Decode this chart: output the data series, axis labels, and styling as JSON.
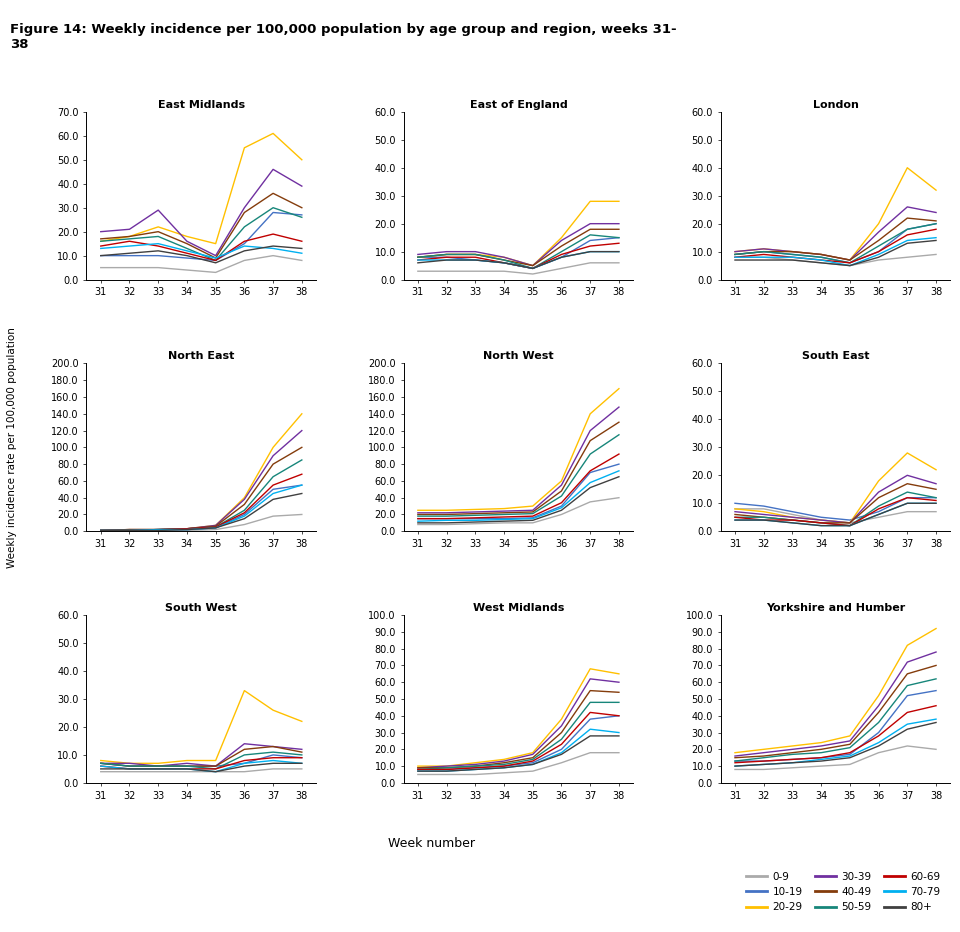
{
  "title": "Figure 14: Weekly incidence per 100,000 population by age group and region, weeks 31-\n38",
  "ylabel": "Weekly incidence rate per 100,000 population",
  "xlabel": "Week number",
  "weeks": [
    31,
    32,
    33,
    34,
    35,
    36,
    37,
    38
  ],
  "age_groups": [
    "0-9",
    "10-19",
    "20-29",
    "30-39",
    "40-49",
    "50-59",
    "60-69",
    "70-79",
    "80+"
  ],
  "colors": {
    "0-9": "#aaaaaa",
    "10-19": "#4472c4",
    "20-29": "#ffc000",
    "30-39": "#7030a0",
    "40-49": "#843c0c",
    "50-59": "#17867a",
    "60-69": "#c00000",
    "70-79": "#00b0f0",
    "80+": "#404040"
  },
  "regions": [
    "East Midlands",
    "East of England",
    "London",
    "North East",
    "North West",
    "South East",
    "South West",
    "West Midlands",
    "Yorkshire and Humber"
  ],
  "ylims": {
    "East Midlands": [
      0,
      70
    ],
    "East of England": [
      0,
      60
    ],
    "London": [
      0,
      60
    ],
    "North East": [
      0,
      200
    ],
    "North West": [
      0,
      200
    ],
    "South East": [
      0,
      60
    ],
    "South West": [
      0,
      60
    ],
    "West Midlands": [
      0,
      100
    ],
    "Yorkshire and Humber": [
      0,
      100
    ]
  },
  "yticks": {
    "East Midlands": [
      0,
      10,
      20,
      30,
      40,
      50,
      60,
      70
    ],
    "East of England": [
      0,
      10,
      20,
      30,
      40,
      50,
      60
    ],
    "London": [
      0,
      10,
      20,
      30,
      40,
      50,
      60
    ],
    "North East": [
      0,
      20,
      40,
      60,
      80,
      100,
      120,
      140,
      160,
      180,
      200
    ],
    "North West": [
      0,
      20,
      40,
      60,
      80,
      100,
      120,
      140,
      160,
      180,
      200
    ],
    "South East": [
      0,
      10,
      20,
      30,
      40,
      50,
      60
    ],
    "South West": [
      0,
      10,
      20,
      30,
      40,
      50,
      60
    ],
    "West Midlands": [
      0,
      10,
      20,
      30,
      40,
      50,
      60,
      70,
      80,
      90,
      100
    ],
    "Yorkshire and Humber": [
      0,
      10,
      20,
      30,
      40,
      50,
      60,
      70,
      80,
      90,
      100
    ]
  },
  "data": {
    "East Midlands": {
      "0-9": [
        5,
        5,
        5,
        4,
        3,
        8,
        10,
        8
      ],
      "10-19": [
        10,
        10,
        10,
        9,
        8,
        15,
        28,
        27
      ],
      "20-29": [
        16,
        18,
        22,
        18,
        15,
        55,
        61,
        50
      ],
      "30-39": [
        20,
        21,
        29,
        16,
        10,
        30,
        46,
        39
      ],
      "40-49": [
        17,
        18,
        20,
        15,
        9,
        28,
        36,
        30
      ],
      "50-59": [
        16,
        17,
        18,
        13,
        8,
        22,
        30,
        26
      ],
      "60-69": [
        14,
        16,
        14,
        11,
        8,
        16,
        19,
        16
      ],
      "70-79": [
        13,
        14,
        15,
        12,
        9,
        14,
        13,
        11
      ],
      "80+": [
        10,
        11,
        12,
        10,
        7,
        12,
        14,
        13
      ]
    },
    "East of England": {
      "0-9": [
        3,
        3,
        3,
        3,
        2,
        4,
        6,
        6
      ],
      "10-19": [
        8,
        8,
        7,
        6,
        4,
        8,
        14,
        15
      ],
      "20-29": [
        8,
        9,
        9,
        8,
        5,
        15,
        28,
        28
      ],
      "30-39": [
        9,
        10,
        10,
        8,
        5,
        14,
        20,
        20
      ],
      "40-49": [
        8,
        9,
        9,
        7,
        5,
        12,
        18,
        18
      ],
      "50-59": [
        8,
        9,
        9,
        7,
        4,
        10,
        16,
        15
      ],
      "60-69": [
        7,
        8,
        8,
        6,
        4,
        9,
        12,
        13
      ],
      "70-79": [
        7,
        7,
        7,
        6,
        4,
        8,
        10,
        10
      ],
      "80+": [
        6,
        7,
        7,
        6,
        4,
        8,
        10,
        10
      ]
    },
    "London": {
      "0-9": [
        8,
        8,
        7,
        6,
        5,
        7,
        8,
        9
      ],
      "10-19": [
        9,
        10,
        9,
        8,
        6,
        10,
        18,
        20
      ],
      "20-29": [
        10,
        11,
        10,
        9,
        7,
        20,
        40,
        32
      ],
      "30-39": [
        10,
        11,
        10,
        9,
        7,
        17,
        26,
        24
      ],
      "40-49": [
        9,
        10,
        10,
        9,
        7,
        14,
        22,
        21
      ],
      "50-59": [
        9,
        10,
        9,
        8,
        6,
        12,
        18,
        20
      ],
      "60-69": [
        8,
        9,
        8,
        7,
        6,
        10,
        16,
        18
      ],
      "70-79": [
        8,
        8,
        8,
        7,
        5,
        9,
        14,
        15
      ],
      "80+": [
        7,
        7,
        7,
        6,
        5,
        8,
        13,
        14
      ]
    },
    "North East": {
      "0-9": [
        1,
        1,
        1,
        1,
        2,
        8,
        18,
        20
      ],
      "10-19": [
        1,
        1,
        2,
        2,
        4,
        20,
        50,
        55
      ],
      "20-29": [
        1,
        2,
        2,
        3,
        7,
        40,
        100,
        140
      ],
      "30-39": [
        1,
        2,
        2,
        3,
        7,
        38,
        90,
        120
      ],
      "40-49": [
        1,
        2,
        2,
        3,
        6,
        32,
        80,
        100
      ],
      "50-59": [
        1,
        1,
        2,
        3,
        5,
        25,
        65,
        85
      ],
      "60-69": [
        1,
        1,
        2,
        3,
        5,
        22,
        55,
        68
      ],
      "70-79": [
        1,
        1,
        2,
        2,
        4,
        18,
        45,
        55
      ],
      "80+": [
        1,
        1,
        1,
        2,
        4,
        15,
        38,
        45
      ]
    },
    "North West": {
      "0-9": [
        8,
        8,
        9,
        10,
        10,
        20,
        35,
        40
      ],
      "10-19": [
        15,
        15,
        15,
        15,
        16,
        30,
        70,
        80
      ],
      "20-29": [
        25,
        25,
        26,
        27,
        30,
        60,
        140,
        170
      ],
      "30-39": [
        22,
        22,
        23,
        24,
        25,
        55,
        120,
        148
      ],
      "40-49": [
        20,
        20,
        21,
        22,
        23,
        48,
        108,
        130
      ],
      "50-59": [
        18,
        18,
        19,
        20,
        21,
        42,
        92,
        115
      ],
      "60-69": [
        15,
        15,
        16,
        17,
        18,
        34,
        72,
        92
      ],
      "70-79": [
        12,
        13,
        13,
        14,
        15,
        28,
        58,
        72
      ],
      "80+": [
        10,
        10,
        11,
        12,
        13,
        25,
        52,
        65
      ]
    },
    "South East": {
      "0-9": [
        8,
        8,
        6,
        4,
        3,
        5,
        7,
        7
      ],
      "10-19": [
        10,
        9,
        7,
        5,
        4,
        7,
        12,
        12
      ],
      "20-29": [
        8,
        7,
        5,
        4,
        3,
        18,
        28,
        22
      ],
      "30-39": [
        7,
        6,
        5,
        4,
        3,
        14,
        20,
        17
      ],
      "40-49": [
        6,
        5,
        4,
        3,
        3,
        12,
        17,
        15
      ],
      "50-59": [
        5,
        5,
        4,
        3,
        2,
        9,
        14,
        12
      ],
      "60-69": [
        5,
        4,
        4,
        3,
        2,
        8,
        12,
        11
      ],
      "70-79": [
        4,
        4,
        3,
        2,
        2,
        6,
        10,
        10
      ],
      "80+": [
        4,
        4,
        3,
        2,
        2,
        6,
        10,
        10
      ]
    },
    "South West": {
      "0-9": [
        4,
        4,
        4,
        4,
        4,
        4,
        5,
        5
      ],
      "10-19": [
        7,
        6,
        6,
        6,
        6,
        7,
        10,
        9
      ],
      "20-29": [
        8,
        7,
        7,
        8,
        8,
        33,
        26,
        22
      ],
      "30-39": [
        7,
        7,
        6,
        7,
        6,
        14,
        13,
        12
      ],
      "40-49": [
        7,
        6,
        6,
        6,
        6,
        12,
        13,
        11
      ],
      "50-59": [
        7,
        6,
        6,
        6,
        5,
        10,
        11,
        10
      ],
      "60-69": [
        6,
        5,
        5,
        5,
        5,
        8,
        9,
        9
      ],
      "70-79": [
        6,
        5,
        5,
        5,
        4,
        7,
        8,
        7
      ],
      "80+": [
        5,
        5,
        5,
        5,
        4,
        6,
        7,
        7
      ]
    },
    "West Midlands": {
      "0-9": [
        5,
        5,
        5,
        6,
        7,
        12,
        18,
        18
      ],
      "10-19": [
        8,
        8,
        9,
        10,
        12,
        20,
        38,
        40
      ],
      "20-29": [
        10,
        10,
        12,
        14,
        18,
        38,
        68,
        65
      ],
      "30-39": [
        9,
        10,
        11,
        13,
        17,
        34,
        62,
        60
      ],
      "40-49": [
        9,
        9,
        10,
        12,
        15,
        30,
        55,
        54
      ],
      "50-59": [
        8,
        9,
        10,
        11,
        14,
        26,
        48,
        48
      ],
      "60-69": [
        8,
        8,
        9,
        10,
        13,
        23,
        42,
        40
      ],
      "70-79": [
        7,
        7,
        8,
        9,
        11,
        18,
        32,
        30
      ],
      "80+": [
        7,
        7,
        8,
        9,
        11,
        17,
        28,
        28
      ]
    },
    "Yorkshire and Humber": {
      "0-9": [
        8,
        8,
        9,
        10,
        11,
        18,
        22,
        20
      ],
      "10-19": [
        13,
        13,
        14,
        15,
        17,
        30,
        52,
        55
      ],
      "20-29": [
        18,
        20,
        22,
        24,
        28,
        52,
        82,
        92
      ],
      "30-39": [
        16,
        18,
        20,
        22,
        25,
        46,
        72,
        78
      ],
      "40-49": [
        15,
        16,
        18,
        20,
        23,
        42,
        65,
        70
      ],
      "50-59": [
        13,
        15,
        17,
        18,
        21,
        36,
        58,
        62
      ],
      "60-69": [
        12,
        13,
        14,
        15,
        18,
        28,
        42,
        46
      ],
      "70-79": [
        10,
        11,
        12,
        14,
        16,
        24,
        35,
        38
      ],
      "80+": [
        10,
        11,
        12,
        13,
        15,
        22,
        32,
        36
      ]
    }
  }
}
